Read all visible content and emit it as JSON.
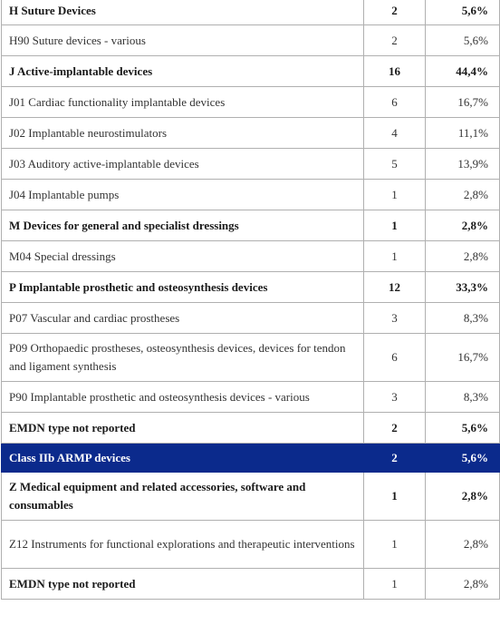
{
  "table": {
    "rows": [
      {
        "label": "H Suture Devices",
        "count": "2",
        "pct": "5,6%",
        "bold": true
      },
      {
        "label": "H90 Suture devices - various",
        "count": "2",
        "pct": "5,6%"
      },
      {
        "label": "J Active-implantable devices",
        "count": "16",
        "pct": "44,4%",
        "bold": true
      },
      {
        "label": "J01 Cardiac functionality implantable devices",
        "count": "6",
        "pct": "16,7%"
      },
      {
        "label": "J02 Implantable neurostimulators",
        "count": "4",
        "pct": "11,1%"
      },
      {
        "label": "J03 Auditory active-implantable devices",
        "count": "5",
        "pct": "13,9%"
      },
      {
        "label": "J04 Implantable pumps",
        "count": "1",
        "pct": "2,8%"
      },
      {
        "label": "M Devices for general and specialist dressings",
        "count": "1",
        "pct": "2,8%",
        "bold": true
      },
      {
        "label": "M04 Special dressings",
        "count": "1",
        "pct": "2,8%"
      },
      {
        "label": "P Implantable prosthetic and osteosynthesis devices",
        "count": "12",
        "pct": "33,3%",
        "bold": true
      },
      {
        "label": "P07 Vascular and cardiac prostheses",
        "count": "3",
        "pct": "8,3%"
      },
      {
        "label": "P09 Orthopaedic prostheses, osteosynthesis devices, devices for tendon and ligament synthesis",
        "count": "6",
        "pct": "16,7%"
      },
      {
        "label": "P90 Implantable prosthetic and osteosynthesis devices - various",
        "count": "3",
        "pct": "8,3%"
      },
      {
        "label": "EMDN type not reported",
        "count": "2",
        "pct": "5,6%",
        "bold": true
      },
      {
        "label": "Class IIb ARMP devices",
        "count": "2",
        "pct": "5,6%",
        "highlight": true
      },
      {
        "label": "Z Medical equipment and related accessories, software and consumables",
        "count": "1",
        "pct": "2,8%",
        "bold": true
      },
      {
        "label": "Z12 Instruments for functional explorations and therapeutic interventions",
        "count": "1",
        "pct": "2,8%"
      },
      {
        "label": "EMDN type not reported",
        "count": "1",
        "pct": "2,8%",
        "bold_label_only": true
      }
    ]
  },
  "colors": {
    "highlight_bg": "#0b2a8c",
    "highlight_text": "#ffffff",
    "border": "#b0b0b0"
  }
}
